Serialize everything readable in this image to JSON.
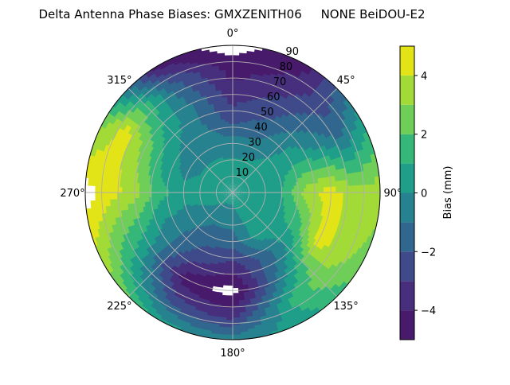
{
  "chart_data": {
    "type": "heatmap",
    "subtype": "polar filled contour",
    "title": "Delta Antenna Phase Biases: GMXZENITH06     NONE BeiDOU-E2",
    "azimuth_direction": "clockwise, 0° at top",
    "theta_tick_labels": [
      "0°",
      "45°",
      "90°",
      "135°",
      "180°",
      "225°",
      "270°",
      "315°"
    ],
    "theta_ticks": [
      0,
      45,
      90,
      135,
      180,
      225,
      270,
      315
    ],
    "radial_tick_labels": [
      "10",
      "20",
      "30",
      "40",
      "50",
      "60",
      "70",
      "80",
      "90"
    ],
    "radial_ticks": [
      10,
      20,
      30,
      40,
      50,
      60,
      70,
      80,
      90
    ],
    "rlim": [
      0,
      90
    ],
    "grid": true,
    "levels": [
      -5,
      -4,
      -3,
      -2,
      -1,
      0,
      1,
      2,
      3,
      4,
      5
    ],
    "colormap": "viridis",
    "band_colors": [
      "#481a6c",
      "#472f7d",
      "#3e4a89",
      "#31678e",
      "#26828e",
      "#1f9e89",
      "#35b779",
      "#6ece58",
      "#a2da37",
      "#e2e418"
    ],
    "outside_range_color": "#ffffff",
    "colorbar": {
      "label": "Bias (mm)",
      "ticks": [
        -4,
        -2,
        0,
        2,
        4
      ],
      "tick_labels": [
        "−4",
        "−2",
        "0",
        "2",
        "4"
      ],
      "range": [
        -5,
        5
      ],
      "placement": "right"
    },
    "grid_azimuths": [
      0,
      30,
      60,
      90,
      120,
      150,
      180,
      210,
      240,
      270,
      300,
      330
    ],
    "grid_radii": [
      0,
      15,
      30,
      45,
      60,
      75,
      90
    ],
    "values_mm": [
      [
        0.5,
        0.3,
        -0.5,
        -2.5,
        -3.5,
        -4.5,
        -5.5
      ],
      [
        0.5,
        0.5,
        -0.5,
        -1.5,
        -2.5,
        -3.5,
        -4.5
      ],
      [
        0.5,
        0.5,
        0.5,
        0.5,
        -0.5,
        -1.5,
        0.5
      ],
      [
        0.5,
        0.5,
        1.0,
        3.5,
        4.5,
        3.5,
        3.5
      ],
      [
        0.5,
        0.5,
        0.5,
        1.5,
        4.5,
        3.5,
        2.5
      ],
      [
        0.5,
        0.5,
        0.5,
        -1.5,
        -0.5,
        1.5,
        0.5
      ],
      [
        0.5,
        -0.5,
        -1.5,
        -3.5,
        -5.5,
        -3.5,
        -0.5
      ],
      [
        0.5,
        -0.5,
        -1.5,
        -2.5,
        -4.5,
        -2.5,
        0.5
      ],
      [
        0.5,
        0.0,
        -0.5,
        -0.5,
        0.5,
        1.5,
        3.5
      ],
      [
        0.5,
        0.5,
        0.5,
        1.5,
        3.5,
        4.5,
        5.5
      ],
      [
        0.5,
        0.5,
        -0.5,
        0.5,
        2.5,
        4.5,
        2.5
      ],
      [
        0.5,
        0.5,
        -0.5,
        -0.5,
        -0.5,
        -1.5,
        -4.5
      ]
    ]
  }
}
